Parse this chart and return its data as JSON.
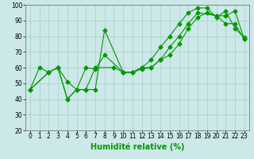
{
  "title": "",
  "xlabel": "Humidité relative (%)",
  "ylabel": "",
  "xlim": [
    -0.5,
    23.5
  ],
  "ylim": [
    20,
    100
  ],
  "xticks": [
    0,
    1,
    2,
    3,
    4,
    5,
    6,
    7,
    8,
    9,
    10,
    11,
    12,
    13,
    14,
    15,
    16,
    17,
    18,
    19,
    20,
    21,
    22,
    23
  ],
  "yticks": [
    20,
    30,
    40,
    50,
    60,
    70,
    80,
    90,
    100
  ],
  "bg_color": "#cce8e8",
  "grid_color": "#aacccc",
  "line_color": "#009900",
  "line1_x": [
    0,
    2,
    3,
    4,
    5,
    6,
    7,
    9,
    10,
    11,
    12,
    13,
    14,
    15,
    16,
    17,
    18,
    19,
    20,
    21,
    22,
    23
  ],
  "line1_y": [
    46,
    57,
    60,
    40,
    46,
    46,
    60,
    60,
    57,
    57,
    60,
    60,
    65,
    68,
    75,
    85,
    92,
    95,
    93,
    88,
    88,
    78
  ],
  "line2_x": [
    0,
    1,
    2,
    3,
    4,
    5,
    6,
    7,
    8,
    10,
    11,
    12,
    13,
    14,
    15,
    16,
    17,
    18,
    20,
    21,
    22,
    23
  ],
  "line2_y": [
    46,
    60,
    57,
    60,
    51,
    46,
    60,
    59,
    68,
    57,
    57,
    59,
    60,
    65,
    73,
    80,
    88,
    95,
    93,
    93,
    96,
    78
  ],
  "line3_x": [
    0,
    2,
    3,
    4,
    5,
    6,
    7,
    8,
    10,
    11,
    12,
    13,
    14,
    15,
    16,
    17,
    18,
    19,
    20,
    21,
    22,
    23
  ],
  "line3_y": [
    46,
    57,
    60,
    40,
    46,
    46,
    46,
    84,
    57,
    57,
    60,
    65,
    73,
    80,
    88,
    95,
    98,
    98,
    92,
    96,
    85,
    79
  ],
  "marker": "D",
  "markersize": 2.5,
  "linewidth": 0.8,
  "xlabel_fontsize": 7,
  "tick_fontsize": 5.5,
  "fig_width": 3.2,
  "fig_height": 2.0,
  "dpi": 100
}
